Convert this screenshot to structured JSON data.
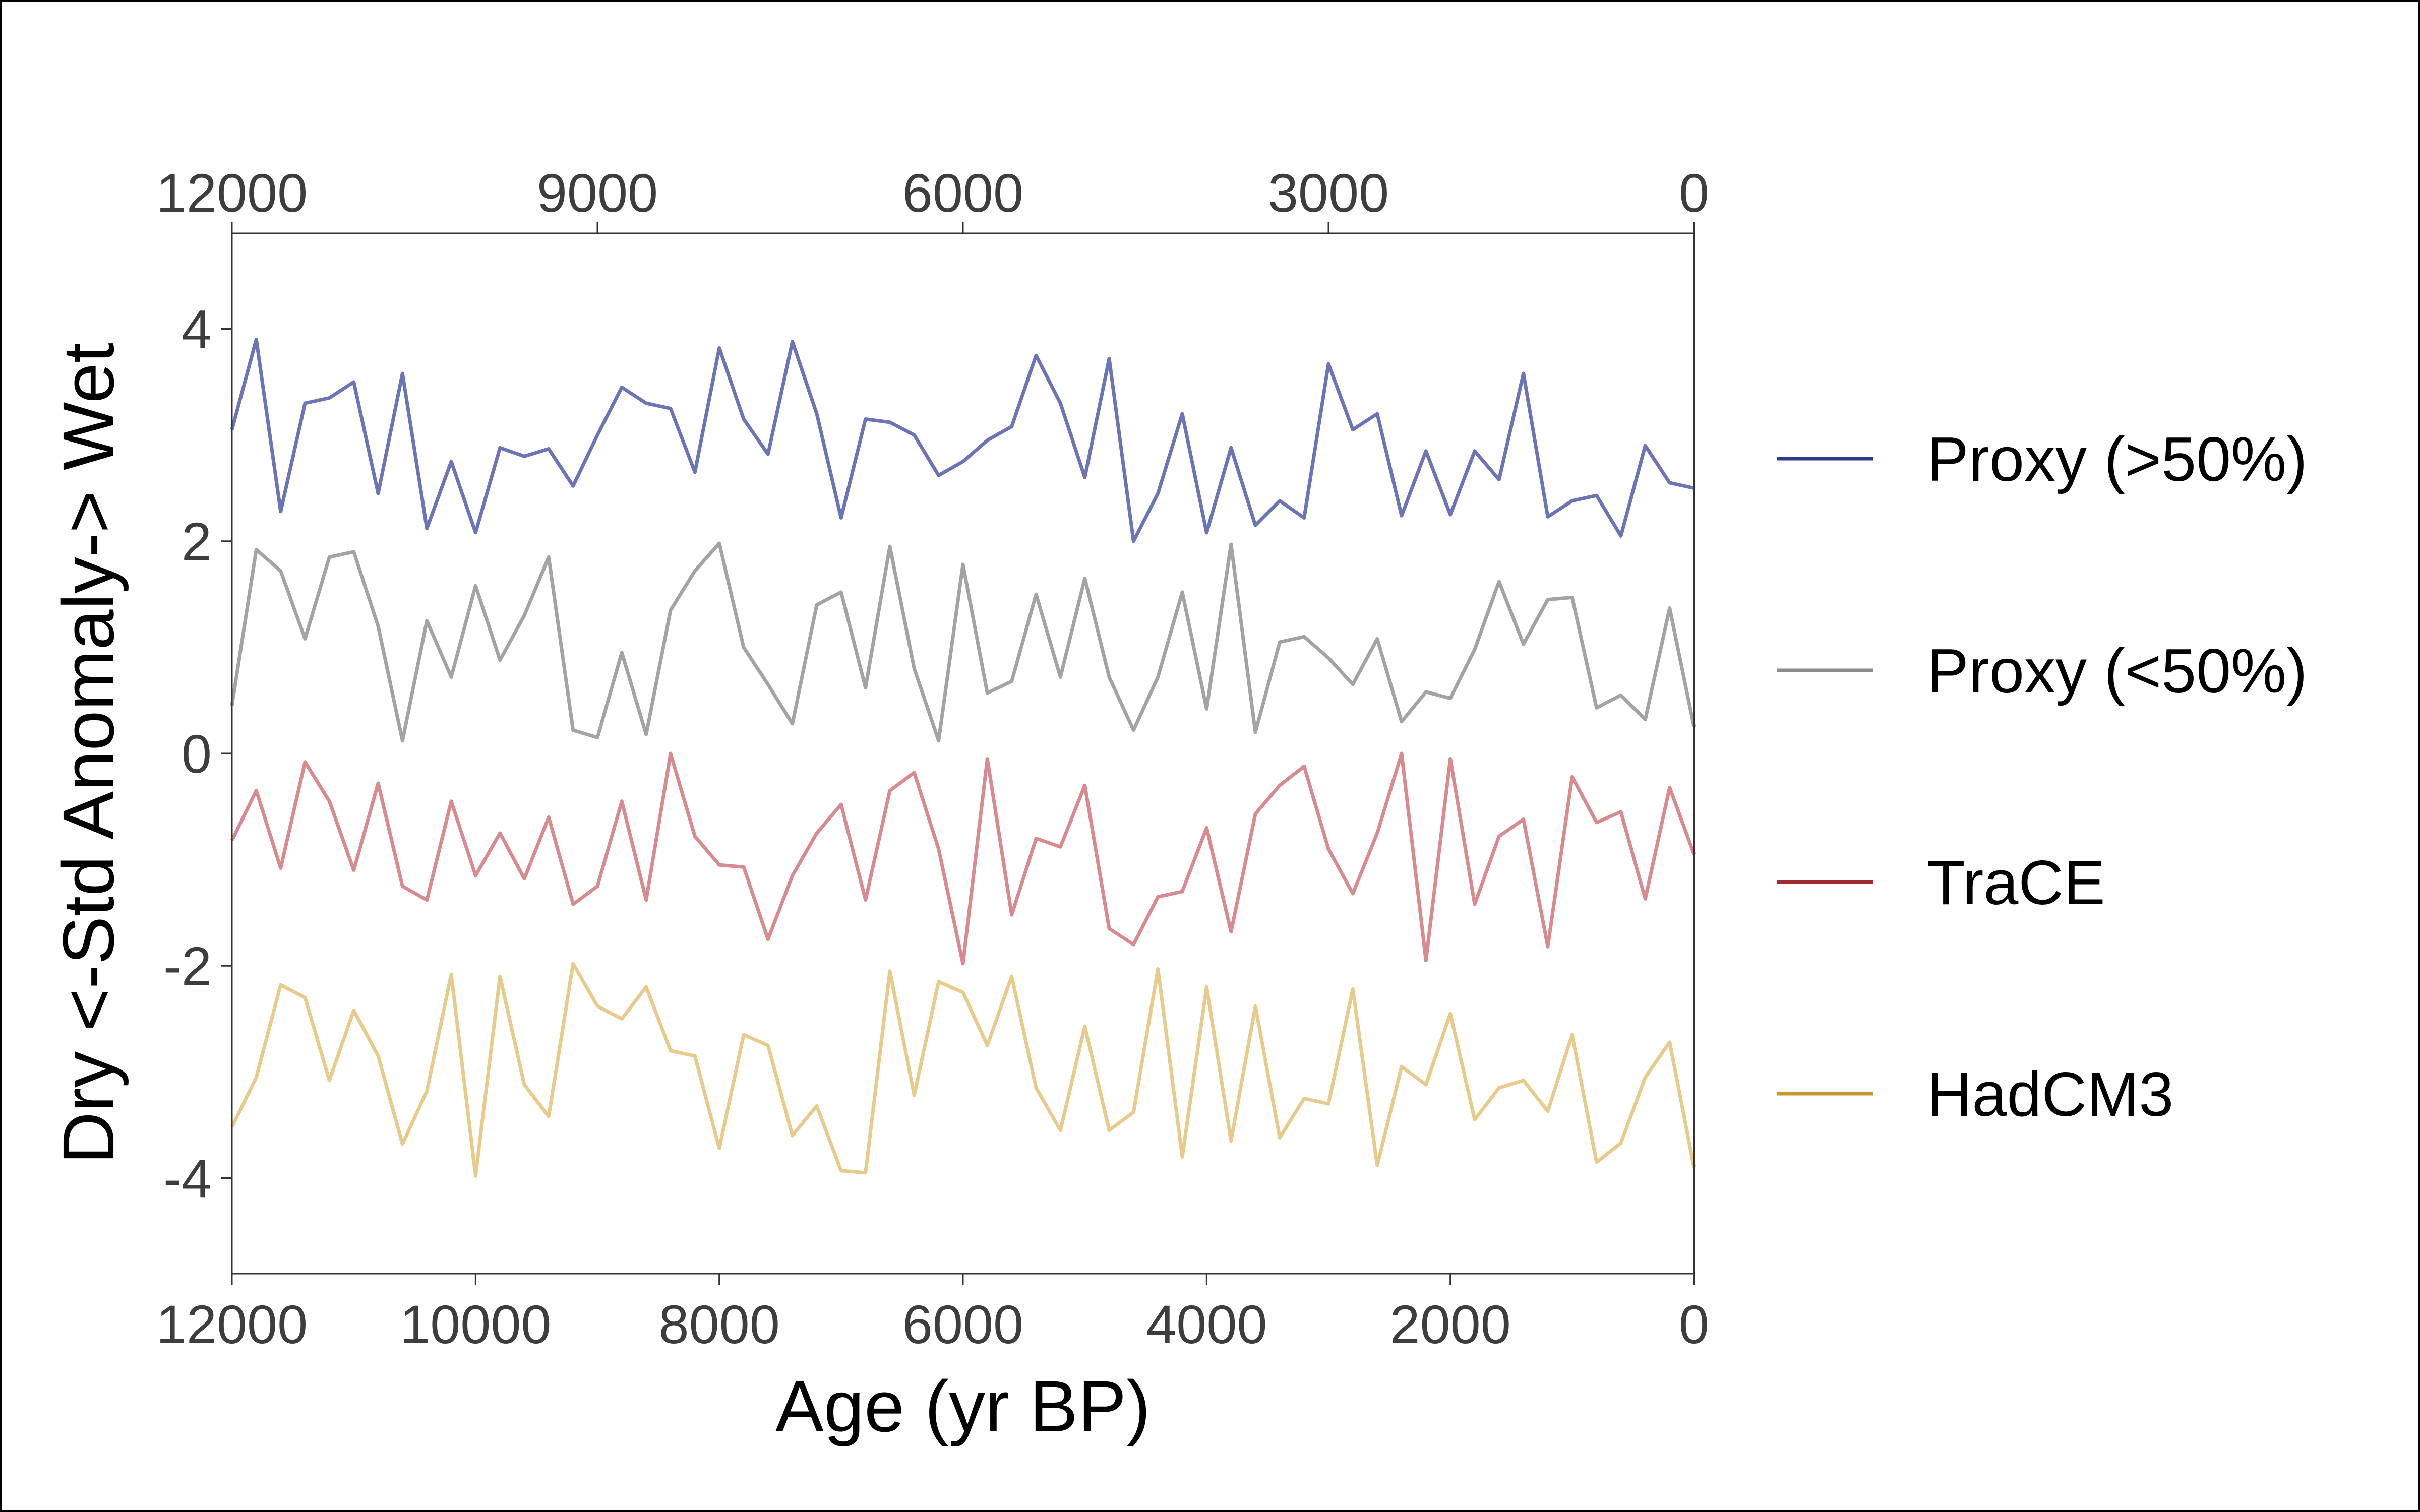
{
  "chart_data": {
    "type": "line",
    "xlabel": "Age (yr BP)",
    "ylabel": "Dry <-Std Anomaly-> Wet",
    "xlim": [
      12000,
      0
    ],
    "ylim": [
      -4.9,
      4.9
    ],
    "x_ticks": [
      "12000",
      "10000",
      "8000",
      "6000",
      "4000",
      "2000",
      "0"
    ],
    "x_tick_values": [
      12000,
      10000,
      8000,
      6000,
      4000,
      2000,
      0
    ],
    "x_top_ticks": [
      "12000",
      "9000",
      "6000",
      "3000",
      "0"
    ],
    "x_top_tick_values": [
      12000,
      9000,
      6000,
      3000,
      0
    ],
    "y_ticks": [
      "4",
      "2",
      "0",
      "-2",
      "-4"
    ],
    "y_tick_values": [
      4,
      2,
      0,
      -2,
      -4
    ],
    "grid": false,
    "legend_position": "right",
    "x": [
      12000,
      11800,
      11600,
      11400,
      11200,
      11000,
      10800,
      10600,
      10400,
      10200,
      10000,
      9800,
      9600,
      9400,
      9200,
      9000,
      8800,
      8600,
      8400,
      8200,
      8000,
      7800,
      7600,
      7400,
      7200,
      7000,
      6800,
      6600,
      6400,
      6200,
      6000,
      5800,
      5600,
      5400,
      5200,
      5000,
      4800,
      4600,
      4400,
      4200,
      4000,
      3800,
      3600,
      3400,
      3200,
      3000,
      2800,
      2600,
      2400,
      2200,
      2000,
      1800,
      1600,
      1400,
      1200,
      1000,
      800,
      600,
      400,
      200,
      0
    ],
    "series": [
      {
        "name": "Proxy (>50%)",
        "color": "#2b3a8f",
        "line_color": "#6b74b6",
        "values": [
          3.05,
          3.9,
          2.28,
          3.3,
          3.35,
          3.5,
          2.45,
          3.58,
          2.12,
          2.75,
          2.08,
          2.88,
          2.8,
          2.87,
          2.52,
          3.0,
          3.45,
          3.3,
          3.25,
          2.65,
          3.82,
          3.15,
          2.82,
          3.88,
          3.2,
          2.22,
          3.15,
          3.12,
          3.0,
          2.62,
          2.75,
          2.95,
          3.08,
          3.75,
          3.3,
          2.6,
          3.72,
          2.0,
          2.45,
          3.2,
          2.08,
          2.88,
          2.15,
          2.38,
          2.22,
          3.67,
          3.05,
          3.2,
          2.24,
          2.85,
          2.25,
          2.85,
          2.58,
          3.58,
          2.23,
          2.38,
          2.43,
          2.05,
          2.9,
          2.55,
          2.5
        ]
      },
      {
        "name": "Proxy (<50%)",
        "color": "#8a8a8a",
        "line_color": "#a3a3a3",
        "values": [
          0.45,
          1.92,
          1.72,
          1.08,
          1.85,
          1.9,
          1.2,
          0.12,
          1.25,
          0.72,
          1.58,
          0.88,
          1.3,
          1.85,
          0.22,
          0.15,
          0.95,
          0.18,
          1.35,
          1.72,
          1.98,
          1.0,
          0.65,
          0.28,
          1.4,
          1.52,
          0.62,
          1.95,
          0.8,
          0.12,
          1.78,
          0.57,
          0.68,
          1.5,
          0.72,
          1.65,
          0.72,
          0.22,
          0.72,
          1.52,
          0.42,
          1.97,
          0.2,
          1.05,
          1.1,
          0.9,
          0.65,
          1.08,
          0.3,
          0.58,
          0.52,
          0.98,
          1.62,
          1.03,
          1.45,
          1.47,
          0.43,
          0.55,
          0.32,
          1.37,
          0.25
        ]
      },
      {
        "name": "TraCE",
        "color": "#a12a2e",
        "line_color": "#d98a8e",
        "values": [
          -0.82,
          -0.35,
          -1.08,
          -0.08,
          -0.45,
          -1.1,
          -0.28,
          -1.25,
          -1.38,
          -0.45,
          -1.15,
          -0.75,
          -1.18,
          -0.6,
          -1.42,
          -1.25,
          -0.45,
          -1.38,
          0.0,
          -0.78,
          -1.05,
          -1.07,
          -1.75,
          -1.15,
          -0.75,
          -0.48,
          -1.38,
          -0.35,
          -0.18,
          -0.9,
          -1.98,
          -0.05,
          -1.52,
          -0.8,
          -0.88,
          -0.3,
          -1.65,
          -1.8,
          -1.35,
          -1.3,
          -0.7,
          -1.68,
          -0.57,
          -0.3,
          -0.12,
          -0.9,
          -1.32,
          -0.75,
          0.0,
          -1.95,
          -0.05,
          -1.42,
          -0.78,
          -0.62,
          -1.82,
          -0.22,
          -0.65,
          -0.55,
          -1.37,
          -0.32,
          -0.95
        ]
      },
      {
        "name": "HadCM3",
        "color": "#c9962b",
        "line_color": "#e8cb8a",
        "values": [
          -3.52,
          -3.05,
          -2.18,
          -2.3,
          -3.08,
          -2.42,
          -2.85,
          -3.68,
          -3.18,
          -2.08,
          -3.98,
          -2.1,
          -3.12,
          -3.42,
          -1.98,
          -2.38,
          -2.5,
          -2.2,
          -2.8,
          -2.85,
          -3.72,
          -2.65,
          -2.75,
          -3.6,
          -3.32,
          -3.93,
          -3.95,
          -2.05,
          -3.22,
          -2.15,
          -2.25,
          -2.75,
          -2.1,
          -3.15,
          -3.55,
          -2.57,
          -3.55,
          -3.38,
          -2.03,
          -3.8,
          -2.2,
          -3.65,
          -2.38,
          -3.62,
          -3.25,
          -3.3,
          -2.22,
          -3.88,
          -2.95,
          -3.12,
          -2.45,
          -3.45,
          -3.15,
          -3.08,
          -3.37,
          -2.65,
          -3.85,
          -3.67,
          -3.05,
          -2.72,
          -3.9
        ]
      }
    ]
  }
}
